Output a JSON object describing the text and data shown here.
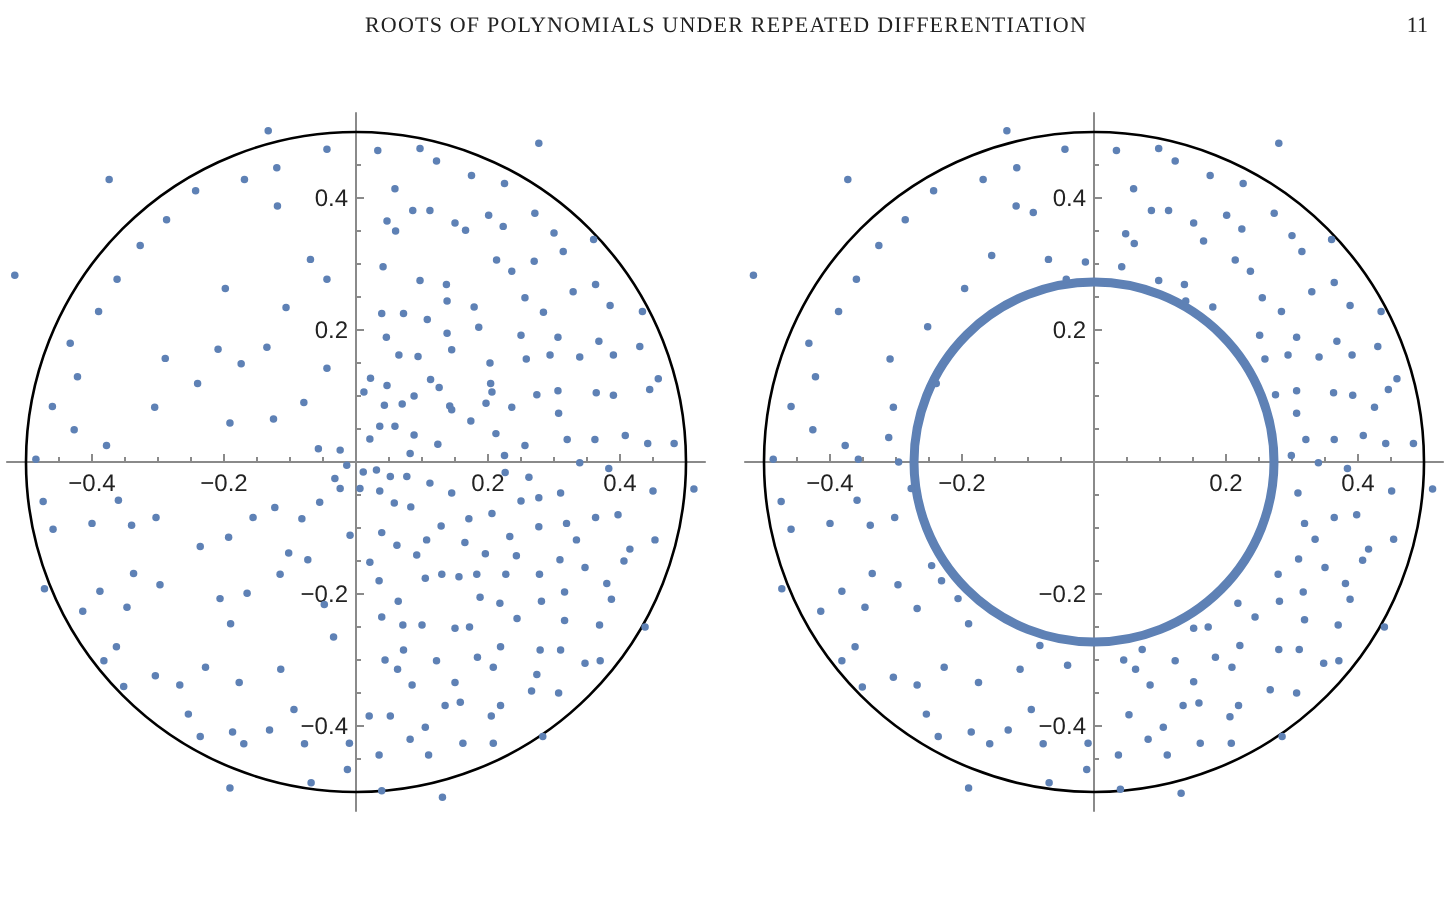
{
  "chart_data": [
    {
      "type": "scatter",
      "title": "ROOTS OF POLYNOMIALS UNDER REPEATED DIFFERENTIATION",
      "annotations": [
        "11"
      ],
      "xlim": [
        -0.53,
        0.53
      ],
      "ylim": [
        -0.53,
        0.53
      ],
      "xticks": [
        {
          "value": -0.45,
          "label": null
        },
        -0.4,
        {
          "value": -0.35,
          "label": null
        },
        {
          "value": -0.3,
          "label": null
        },
        {
          "value": -0.25,
          "label": null
        },
        -0.2,
        {
          "value": -0.15,
          "label": null
        },
        {
          "value": -0.1,
          "label": null
        },
        {
          "value": -0.05,
          "label": null
        },
        {
          "value": 0.05,
          "label": null
        },
        {
          "value": 0.1,
          "label": null
        },
        {
          "value": 0.15,
          "label": null
        },
        0.2,
        {
          "value": 0.25,
          "label": null
        },
        {
          "value": 0.3,
          "label": null
        },
        {
          "value": 0.35,
          "label": null
        },
        0.4,
        {
          "value": 0.45,
          "label": null
        }
      ],
      "yticks": [
        {
          "value": -0.45,
          "label": null
        },
        -0.4,
        {
          "value": -0.35,
          "label": null
        },
        {
          "value": -0.3,
          "label": null
        },
        {
          "value": -0.25,
          "label": null
        },
        -0.2,
        {
          "value": -0.15,
          "label": null
        },
        {
          "value": -0.1,
          "label": null
        },
        {
          "value": -0.05,
          "label": null
        },
        {
          "value": 0.05,
          "label": null
        },
        {
          "value": 0.1,
          "label": null
        },
        {
          "value": 0.15,
          "label": null
        },
        0.2,
        {
          "value": 0.25,
          "label": null
        },
        {
          "value": 0.3,
          "label": null
        },
        {
          "value": 0.35,
          "label": null
        },
        0.4,
        {
          "value": 0.45,
          "label": null
        }
      ],
      "series": [
        {
          "type": "scatter",
          "color": "#5e81b5",
          "marker": "circle",
          "x": [
            -0.133,
            -0.374,
            -0.517,
            -0.044,
            -0.169,
            -0.243,
            -0.287,
            -0.327,
            -0.362,
            -0.39,
            -0.433,
            -0.422,
            -0.46,
            -0.427,
            -0.378,
            -0.485,
            -0.305,
            -0.24,
            -0.198,
            -0.12,
            -0.119,
            -0.069,
            -0.044,
            -0.106,
            -0.135,
            -0.174,
            -0.209,
            -0.289,
            -0.044,
            -0.079,
            -0.125,
            -0.191,
            -0.057,
            -0.024,
            -0.014,
            -0.032,
            -0.474,
            -0.459,
            -0.472,
            -0.414,
            -0.388,
            -0.36,
            -0.4,
            -0.34,
            -0.303,
            -0.337,
            -0.297,
            -0.347,
            -0.363,
            -0.382,
            -0.352,
            -0.304,
            -0.267,
            -0.254,
            -0.236,
            -0.187,
            -0.17,
            -0.131,
            -0.191,
            -0.068,
            -0.094,
            -0.078,
            -0.01,
            -0.013,
            -0.114,
            -0.177,
            -0.228,
            -0.19,
            -0.165,
            -0.206,
            -0.236,
            -0.193,
            -0.156,
            -0.115,
            -0.102,
            -0.073,
            -0.048,
            -0.034,
            -0.055,
            -0.082,
            -0.123,
            -0.009,
            -0.024,
            0.277,
            0.033,
            0.097,
            0.122,
            0.175,
            0.225,
            0.059,
            0.086,
            0.112,
            0.15,
            0.201,
            0.223,
            0.271,
            0.3,
            0.36,
            0.314,
            0.047,
            0.06,
            0.166,
            0.213,
            0.236,
            0.27,
            0.363,
            0.329,
            0.385,
            0.434,
            0.041,
            0.097,
            0.137,
            0.138,
            0.179,
            0.256,
            0.284,
            0.039,
            0.072,
            0.108,
            0.046,
            0.138,
            0.186,
            0.25,
            0.306,
            0.368,
            0.43,
            0.065,
            0.094,
            0.145,
            0.203,
            0.258,
            0.294,
            0.339,
            0.39,
            0.458,
            0.445,
            0.364,
            0.39,
            0.306,
            0.274,
            0.236,
            0.204,
            0.206,
            0.197,
            0.113,
            0.126,
            0.142,
            0.145,
            0.088,
            0.047,
            0.022,
            0.012,
            0.07,
            0.043,
            0.174,
            0.212,
            0.307,
            0.32,
            0.362,
            0.408,
            0.442,
            0.482,
            0.256,
            0.124,
            0.088,
            0.059,
            0.036,
            0.021,
            0.082,
            0.225,
            0.339,
            0.512,
            0.45,
            0.383,
            0.226,
            0.262,
            0.112,
            0.077,
            0.052,
            0.031,
            0.011,
            0.006,
            0.036,
            0.058,
            0.083,
            0.145,
            0.171,
            0.206,
            0.25,
            0.277,
            0.31,
            0.363,
            0.397,
            0.277,
            0.319,
            0.334,
            0.453,
            0.415,
            0.406,
            0.347,
            0.309,
            0.243,
            0.233,
            0.196,
            0.165,
            0.129,
            0.107,
            0.092,
            0.062,
            0.039,
            0.021,
            0.035,
            0.105,
            0.13,
            0.156,
            0.183,
            0.227,
            0.278,
            0.38,
            0.387,
            0.316,
            0.281,
            0.218,
            0.188,
            0.064,
            0.039,
            0.071,
            0.1,
            0.15,
            0.172,
            0.244,
            0.316,
            0.369,
            0.438,
            0.044,
            0.072,
            0.063,
            0.122,
            0.085,
            0.15,
            0.184,
            0.208,
            0.219,
            0.279,
            0.31,
            0.347,
            0.37,
            0.274,
            0.266,
            0.307,
            0.135,
            0.158,
            0.219,
            0.205,
            0.052,
            0.02,
            0.105,
            0.082,
            0.162,
            0.208,
            0.283,
            0.035,
            0.11,
            0.131,
            0.039
          ],
          "values": [
            0.502,
            0.428,
            0.283,
            0.474,
            0.428,
            0.411,
            0.367,
            0.328,
            0.277,
            0.228,
            0.18,
            0.129,
            0.084,
            0.049,
            0.025,
            0.004,
            0.083,
            0.119,
            0.263,
            0.446,
            0.388,
            0.307,
            0.277,
            0.234,
            0.174,
            0.149,
            0.171,
            0.157,
            0.142,
            0.09,
            0.065,
            0.059,
            0.02,
            0.018,
            -0.005,
            -0.025,
            -0.06,
            -0.102,
            -0.192,
            -0.226,
            -0.196,
            -0.058,
            -0.093,
            -0.096,
            -0.084,
            -0.169,
            -0.186,
            -0.22,
            -0.28,
            -0.301,
            -0.34,
            -0.324,
            -0.338,
            -0.382,
            -0.416,
            -0.409,
            -0.427,
            -0.406,
            -0.494,
            -0.486,
            -0.375,
            -0.427,
            -0.426,
            -0.466,
            -0.314,
            -0.334,
            -0.311,
            -0.245,
            -0.199,
            -0.207,
            -0.128,
            -0.114,
            -0.084,
            -0.17,
            -0.138,
            -0.148,
            -0.216,
            -0.265,
            -0.061,
            -0.086,
            -0.069,
            -0.111,
            -0.04,
            0.483,
            0.472,
            0.475,
            0.456,
            0.434,
            0.422,
            0.414,
            0.381,
            0.381,
            0.362,
            0.374,
            0.357,
            0.377,
            0.347,
            0.337,
            0.319,
            0.365,
            0.35,
            0.351,
            0.306,
            0.289,
            0.304,
            0.269,
            0.258,
            0.237,
            0.228,
            0.296,
            0.275,
            0.269,
            0.244,
            0.235,
            0.249,
            0.227,
            0.225,
            0.225,
            0.216,
            0.189,
            0.195,
            0.204,
            0.192,
            0.189,
            0.183,
            0.175,
            0.162,
            0.16,
            0.17,
            0.15,
            0.156,
            0.162,
            0.159,
            0.162,
            0.126,
            0.11,
            0.105,
            0.101,
            0.108,
            0.102,
            0.083,
            0.119,
            0.106,
            0.089,
            0.125,
            0.113,
            0.085,
            0.079,
            0.1,
            0.116,
            0.127,
            0.106,
            0.088,
            0.086,
            0.062,
            0.043,
            0.074,
            0.034,
            0.034,
            0.04,
            0.028,
            0.028,
            0.025,
            0.027,
            0.041,
            0.054,
            0.054,
            0.035,
            0.013,
            0.01,
            -0.001,
            -0.041,
            -0.044,
            -0.01,
            -0.016,
            -0.023,
            -0.032,
            -0.022,
            -0.022,
            -0.012,
            -0.015,
            -0.04,
            -0.044,
            -0.062,
            -0.068,
            -0.047,
            -0.086,
            -0.078,
            -0.059,
            -0.054,
            -0.047,
            -0.084,
            -0.08,
            -0.098,
            -0.093,
            -0.118,
            -0.118,
            -0.132,
            -0.15,
            -0.16,
            -0.148,
            -0.142,
            -0.113,
            -0.139,
            -0.122,
            -0.097,
            -0.118,
            -0.141,
            -0.126,
            -0.107,
            -0.152,
            -0.18,
            -0.176,
            -0.17,
            -0.174,
            -0.17,
            -0.17,
            -0.17,
            -0.184,
            -0.208,
            -0.197,
            -0.211,
            -0.214,
            -0.205,
            -0.211,
            -0.235,
            -0.247,
            -0.247,
            -0.252,
            -0.25,
            -0.237,
            -0.24,
            -0.247,
            -0.25,
            -0.3,
            -0.285,
            -0.314,
            -0.301,
            -0.338,
            -0.334,
            -0.296,
            -0.311,
            -0.28,
            -0.285,
            -0.285,
            -0.305,
            -0.301,
            -0.322,
            -0.347,
            -0.35,
            -0.369,
            -0.364,
            -0.369,
            -0.385,
            -0.385,
            -0.385,
            -0.402,
            -0.42,
            -0.426,
            -0.426,
            -0.416,
            -0.444,
            -0.444,
            -0.508,
            -0.498
          ]
        }
      ]
    },
    {
      "type": "scatter",
      "xlim": [
        -0.53,
        0.53
      ],
      "ylim": [
        -0.53,
        0.53
      ],
      "xticks": [
        {
          "value": -0.45,
          "label": null
        },
        -0.4,
        {
          "value": -0.35,
          "label": null
        },
        {
          "value": -0.3,
          "label": null
        },
        {
          "value": -0.25,
          "label": null
        },
        -0.2,
        {
          "value": -0.15,
          "label": null
        },
        {
          "value": -0.1,
          "label": null
        },
        {
          "value": -0.05,
          "label": null
        },
        {
          "value": 0.05,
          "label": null
        },
        {
          "value": 0.1,
          "label": null
        },
        {
          "value": 0.15,
          "label": null
        },
        0.2,
        {
          "value": 0.25,
          "label": null
        },
        {
          "value": 0.3,
          "label": null
        },
        {
          "value": 0.35,
          "label": null
        },
        0.4,
        {
          "value": 0.45,
          "label": null
        }
      ],
      "yticks": [
        {
          "value": -0.45,
          "label": null
        },
        -0.4,
        {
          "value": -0.35,
          "label": null
        },
        {
          "value": -0.3,
          "label": null
        },
        {
          "value": -0.25,
          "label": null
        },
        -0.2,
        {
          "value": -0.15,
          "label": null
        },
        {
          "value": -0.1,
          "label": null
        },
        {
          "value": -0.05,
          "label": null
        },
        {
          "value": 0.05,
          "label": null
        },
        {
          "value": 0.1,
          "label": null
        },
        {
          "value": 0.15,
          "label": null
        },
        0.2,
        {
          "value": 0.25,
          "label": null
        },
        {
          "value": 0.3,
          "label": null
        },
        {
          "value": 0.35,
          "label": null
        },
        0.4,
        {
          "value": 0.45,
          "label": null
        }
      ],
      "series": [
        {
          "type": "scatter",
          "color": "#5e81b5",
          "marker": "circle",
          "x": [
            -0.132,
            -0.373,
            -0.516,
            -0.044,
            -0.168,
            -0.243,
            -0.286,
            -0.326,
            -0.36,
            -0.387,
            -0.432,
            -0.422,
            -0.459,
            -0.426,
            -0.377,
            -0.486,
            -0.304,
            -0.239,
            -0.196,
            -0.117,
            -0.118,
            -0.069,
            -0.042,
            -0.252,
            -0.309,
            -0.311,
            -0.357,
            -0.296,
            -0.092,
            -0.013,
            -0.155,
            -0.474,
            -0.459,
            -0.473,
            -0.414,
            -0.382,
            -0.359,
            -0.4,
            -0.339,
            -0.302,
            -0.336,
            -0.297,
            -0.347,
            -0.362,
            -0.382,
            -0.351,
            -0.304,
            -0.268,
            -0.254,
            -0.236,
            -0.186,
            -0.158,
            -0.13,
            -0.19,
            -0.068,
            -0.095,
            -0.077,
            -0.009,
            -0.011,
            -0.112,
            -0.175,
            -0.227,
            -0.19,
            -0.246,
            -0.231,
            -0.206,
            -0.268,
            -0.082,
            -0.04,
            -0.277,
            0.28,
            0.034,
            0.098,
            0.123,
            0.176,
            0.226,
            0.06,
            0.087,
            0.113,
            0.151,
            0.201,
            0.224,
            0.273,
            0.3,
            0.36,
            0.315,
            0.048,
            0.061,
            0.166,
            0.214,
            0.237,
            0.042,
            0.098,
            0.137,
            0.139,
            0.18,
            0.255,
            0.284,
            0.33,
            0.364,
            0.388,
            0.435,
            0.251,
            0.307,
            0.368,
            0.43,
            0.259,
            0.294,
            0.341,
            0.391,
            0.459,
            0.446,
            0.363,
            0.392,
            0.307,
            0.275,
            0.425,
            0.307,
            0.321,
            0.364,
            0.408,
            0.442,
            0.484,
            0.299,
            0.34,
            0.513,
            0.451,
            0.384,
            0.309,
            0.364,
            0.398,
            0.319,
            0.335,
            0.454,
            0.416,
            0.407,
            0.35,
            0.31,
            0.279,
            0.381,
            0.388,
            0.317,
            0.281,
            0.218,
            0.244,
            0.319,
            0.37,
            0.44,
            0.151,
            0.173,
            0.221,
            0.28,
            0.311,
            0.348,
            0.371,
            0.045,
            0.073,
            0.063,
            0.123,
            0.085,
            0.151,
            0.184,
            0.209,
            0.267,
            0.307,
            0.135,
            0.159,
            0.219,
            0.206,
            0.053,
            0.105,
            0.082,
            0.161,
            0.208,
            0.285,
            0.037,
            0.111,
            0.132,
            0.04
          ],
          "values": [
            0.502,
            0.428,
            0.283,
            0.474,
            0.428,
            0.411,
            0.367,
            0.328,
            0.277,
            0.228,
            0.18,
            0.129,
            0.084,
            0.049,
            0.025,
            0.004,
            0.083,
            0.119,
            0.263,
            0.446,
            0.388,
            0.307,
            0.277,
            0.205,
            0.156,
            0.037,
            0.004,
            0,
            0.378,
            0.303,
            0.313,
            -0.06,
            -0.102,
            -0.192,
            -0.226,
            -0.196,
            -0.058,
            -0.093,
            -0.096,
            -0.084,
            -0.169,
            -0.186,
            -0.22,
            -0.28,
            -0.301,
            -0.341,
            -0.326,
            -0.338,
            -0.382,
            -0.416,
            -0.409,
            -0.427,
            -0.406,
            -0.494,
            -0.486,
            -0.375,
            -0.427,
            -0.426,
            -0.466,
            -0.314,
            -0.334,
            -0.311,
            -0.245,
            -0.157,
            -0.18,
            -0.207,
            -0.222,
            -0.278,
            -0.308,
            -0.04,
            0.483,
            0.472,
            0.475,
            0.456,
            0.434,
            0.422,
            0.414,
            0.381,
            0.381,
            0.362,
            0.374,
            0.353,
            0.377,
            0.343,
            0.337,
            0.319,
            0.346,
            0.331,
            0.335,
            0.306,
            0.289,
            0.296,
            0.275,
            0.269,
            0.244,
            0.235,
            0.249,
            0.228,
            0.258,
            0.272,
            0.237,
            0.228,
            0.192,
            0.189,
            0.183,
            0.175,
            0.156,
            0.162,
            0.159,
            0.162,
            0.126,
            0.11,
            0.105,
            0.101,
            0.108,
            0.102,
            0.083,
            0.074,
            0.034,
            0.034,
            0.04,
            0.028,
            0.028,
            0.01,
            -0.001,
            -0.041,
            -0.044,
            -0.01,
            -0.047,
            -0.084,
            -0.08,
            -0.093,
            -0.117,
            -0.117,
            -0.132,
            -0.149,
            -0.16,
            -0.147,
            -0.17,
            -0.184,
            -0.208,
            -0.197,
            -0.211,
            -0.214,
            -0.235,
            -0.239,
            -0.247,
            -0.25,
            -0.252,
            -0.25,
            -0.278,
            -0.284,
            -0.284,
            -0.305,
            -0.301,
            -0.3,
            -0.284,
            -0.314,
            -0.301,
            -0.338,
            -0.333,
            -0.296,
            -0.311,
            -0.345,
            -0.35,
            -0.369,
            -0.365,
            -0.369,
            -0.386,
            -0.383,
            -0.402,
            -0.42,
            -0.426,
            -0.426,
            -0.416,
            -0.444,
            -0.444,
            -0.502,
            -0.496
          ]
        }
      ]
    }
  ]
}
